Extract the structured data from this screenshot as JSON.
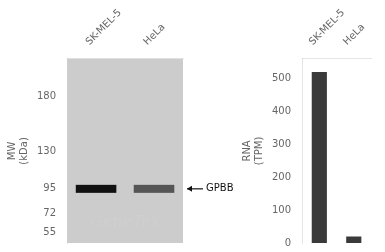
{
  "chart_data": [
    {
      "type": "blot",
      "categories": [
        "SK-MEL-5",
        "HeLa"
      ],
      "ylabel": "MW\n(kDa)",
      "ylim": [
        45,
        215
      ],
      "yticks": [
        180,
        130,
        95,
        72,
        55
      ],
      "color": "#cccccc",
      "colors": [
        "#111111",
        "#555555"
      ],
      "annotations": [
        {
          "text": "GPBB",
          "y": 95
        },
        {
          "text": "GeneTex",
          "color": "#d0d0d0"
        }
      ],
      "grid": false
    },
    {
      "type": "bar",
      "categories": [
        "SK-MEL-5",
        "HeLa"
      ],
      "values": [
        520,
        20
      ],
      "color": "#3a3a3a",
      "ylabel": "RNA\n(TPM)",
      "ylim": [
        0,
        560
      ],
      "yticks": [
        0,
        100,
        200,
        300,
        400,
        500
      ],
      "grid": false
    }
  ]
}
